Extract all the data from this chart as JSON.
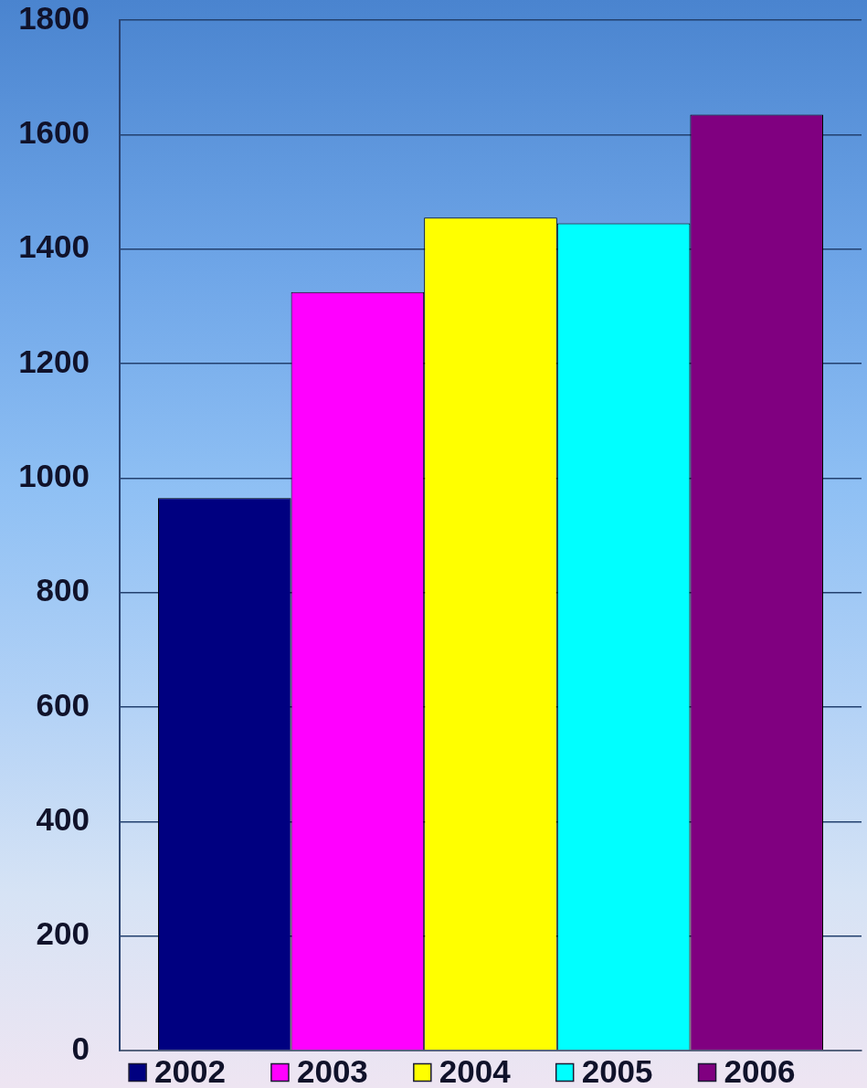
{
  "chart_data": {
    "type": "bar",
    "categories": [
      null
    ],
    "series": [
      {
        "name": "2002",
        "color": "#000080",
        "values": [
          965
        ]
      },
      {
        "name": "2003",
        "color": "#ff00ff",
        "values": [
          1325
        ]
      },
      {
        "name": "2004",
        "color": "#ffff00",
        "values": [
          1455
        ]
      },
      {
        "name": "2005",
        "color": "#00ffff",
        "values": [
          1445
        ]
      },
      {
        "name": "2006",
        "color": "#800080",
        "values": [
          1635
        ]
      }
    ],
    "ylim": [
      0,
      1800
    ],
    "yticks": [
      0,
      200,
      400,
      600,
      800,
      1000,
      1200,
      1400,
      1600,
      1800
    ],
    "grid": "y",
    "legend": "bottom",
    "tick_labels": "y"
  }
}
